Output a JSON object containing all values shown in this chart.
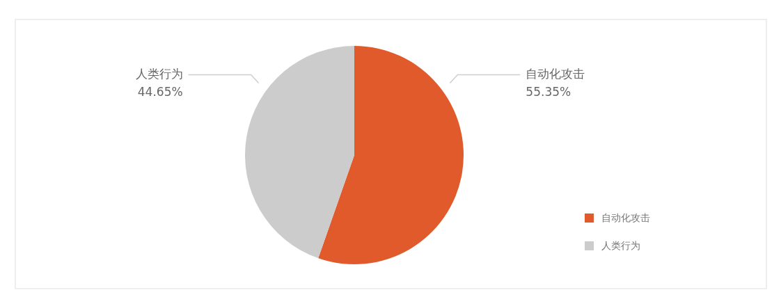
{
  "chart_data": {
    "type": "pie",
    "categories": [
      "自动化攻击",
      "人类行为"
    ],
    "values": [
      55.35,
      44.65
    ],
    "colors": [
      "#e05a2b",
      "#cccccc"
    ],
    "value_labels": [
      "55.35%",
      "44.65%"
    ],
    "legend": "bottom right"
  }
}
